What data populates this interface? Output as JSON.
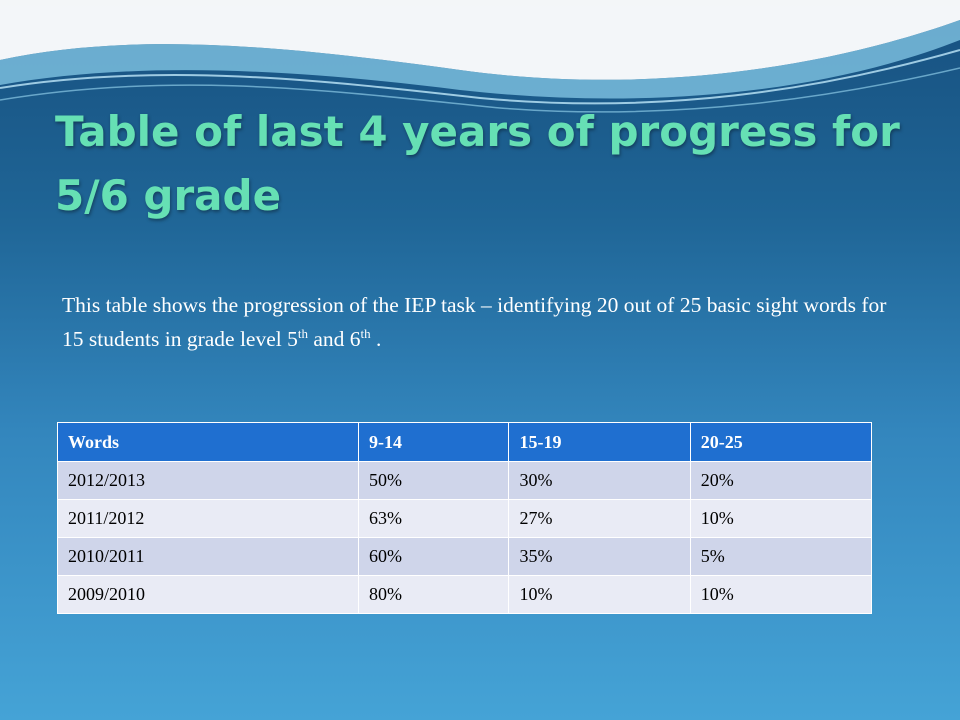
{
  "title": "Table of last 4 years of progress for 5/6 grade",
  "body": {
    "parts": [
      "This table shows the progression of the IEP task – identifying 20 out of 25 basic sight words for 15 students in grade level 5",
      "th",
      "  and 6",
      "th",
      " ."
    ]
  },
  "table": {
    "header": [
      "Words",
      "9-14",
      "15-19",
      "20-25"
    ],
    "rows": [
      [
        "2012/2013",
        "50%",
        "30%",
        "20%"
      ],
      [
        "2011/2012",
        "63%",
        "27%",
        "10%"
      ],
      [
        "2010/2011",
        "60%",
        "35%",
        "5%"
      ],
      [
        "2009/2010",
        "80%",
        "10%",
        "10%"
      ]
    ]
  }
}
